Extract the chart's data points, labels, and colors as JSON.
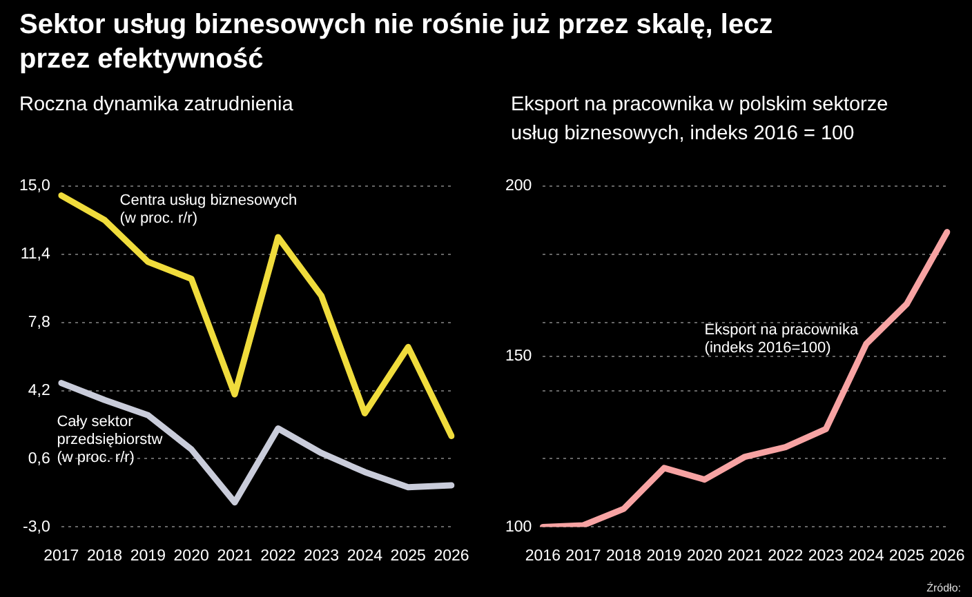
{
  "chart_data": [
    {
      "type": "line",
      "title": "Sektor usług biznesowych nie rośnie już przez skalę, lecz przez efektywność",
      "subtitle": "Roczna dynamika zatrudnienia",
      "categories": [
        "2017",
        "2018",
        "2019",
        "2020",
        "2021",
        "2022",
        "2023",
        "2024",
        "2025",
        "2026"
      ],
      "series": [
        {
          "name": "Centra usług biznesowych\n(w proc. r/r)",
          "color": "#f0dc3c",
          "values": [
            14.5,
            13.2,
            11.0,
            10.1,
            4.0,
            12.3,
            9.2,
            3.0,
            6.5,
            1.8
          ]
        },
        {
          "name": "Cały sektor\nprzedsiębiorstw\n(w proc. r/r)",
          "color": "#c9ccda",
          "values": [
            4.6,
            3.7,
            2.9,
            1.1,
            -1.7,
            2.2,
            0.9,
            -0.1,
            -0.9,
            -0.8
          ]
        }
      ],
      "ylim": [
        -3,
        15
      ],
      "yticks": [
        {
          "value": -3,
          "label": "-3,0"
        },
        {
          "value": 0.6,
          "label": "0,6"
        },
        {
          "value": 4.2,
          "label": "4,2"
        },
        {
          "value": 7.8,
          "label": "7,8"
        },
        {
          "value": 11.4,
          "label": "11,4"
        },
        {
          "value": 15,
          "label": "15,0"
        }
      ],
      "grid": "y",
      "legend": false,
      "marker": "none",
      "line_style": "solid"
    },
    {
      "type": "line",
      "title": "Eksport na pracownika w polskim sektorze usług biznesowych, indeks 2016 = 100",
      "categories": [
        "2016",
        "2017",
        "2018",
        "2019",
        "2020",
        "2021",
        "2022",
        "2023",
        "2024",
        "2025",
        "2026"
      ],
      "series": [
        {
          "name": "Eksport na pracownika\n(indeks 2016=100)",
          "color": "#f7a3a3",
          "values": [
            100.0,
            100.5,
            105.3,
            117.3,
            113.9,
            120.6,
            123.4,
            128.7,
            153.7,
            165.4,
            186.5
          ]
        }
      ],
      "ylim": [
        100,
        200
      ],
      "yticks": [
        100,
        {
          "value": 120,
          "label": null
        },
        {
          "value": 140,
          "label": null
        },
        150,
        {
          "value": 160,
          "label": null
        },
        {
          "value": 180,
          "label": null
        },
        200
      ],
      "grid": "y",
      "legend": false,
      "marker": "none",
      "line_style": "solid",
      "annotations": [
        "Źródło:"
      ]
    }
  ]
}
